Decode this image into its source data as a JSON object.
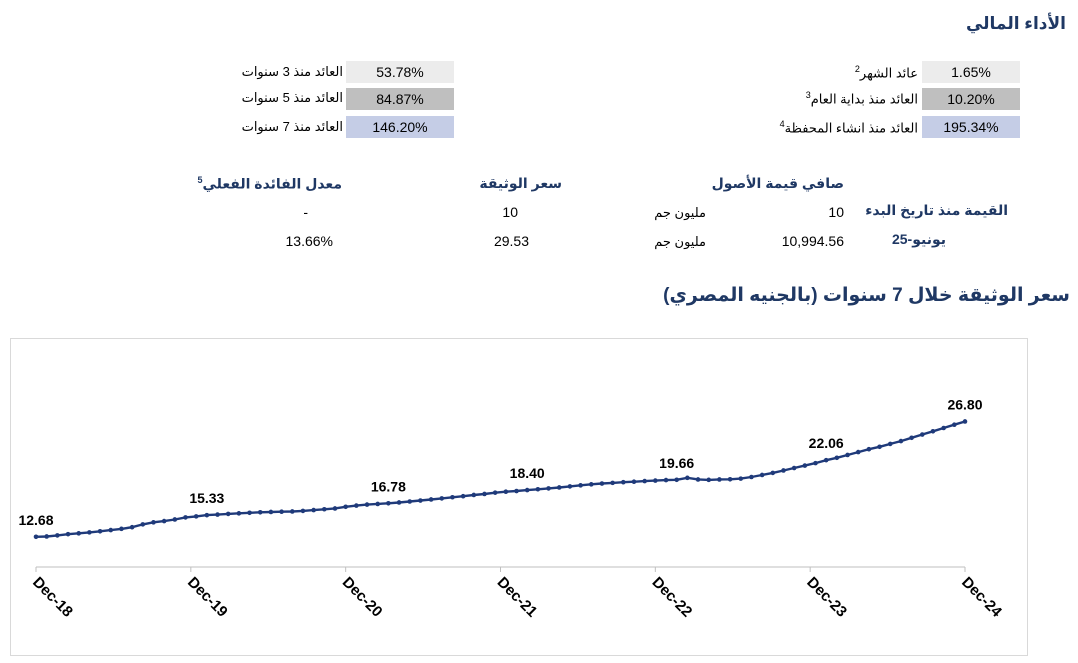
{
  "header": {
    "title": "الأداء المالي"
  },
  "performance": {
    "right": [
      {
        "label": "عائد الشهر",
        "sup": "2",
        "value": "1.65%",
        "tone": "light"
      },
      {
        "label": "العائد منذ بداية العام",
        "sup": "3",
        "value": "10.20%",
        "tone": "mid"
      },
      {
        "label": "العائد منذ انشاء المحفظة",
        "sup": "4",
        "value": "195.34%",
        "tone": "blue"
      }
    ],
    "left": [
      {
        "label": "العائد منذ 3 سنوات",
        "value": "53.78%",
        "tone": "light"
      },
      {
        "label": "العائد منذ 5 سنوات",
        "value": "84.87%",
        "tone": "mid"
      },
      {
        "label": "العائد منذ 7 سنوات",
        "value": "146.20%",
        "tone": "blue"
      }
    ]
  },
  "summary": {
    "headers": {
      "nav": "صافي قيمة الأصول",
      "price": "سعر الوثيقة",
      "rate": "معدل الفائدة الفعلي",
      "rate_sup": "5"
    },
    "row_label": "القيمة منذ تاريخ البدء",
    "row_date": "يونيو-25",
    "unit": "مليون جم",
    "rows": [
      {
        "nav": "10",
        "price": "10",
        "rate": "-"
      },
      {
        "nav": "10,994.56",
        "price": "29.53",
        "rate": "13.66%"
      }
    ]
  },
  "chart_title": "سعر الوثيقة خلال 7 سنوات (بالجنيه المصري)",
  "chart_data": {
    "type": "line",
    "title": "سعر الوثيقة خلال 7 سنوات (بالجنيه المصري)",
    "xlabel": "",
    "ylabel": "",
    "x_ticks": [
      "Dec-18",
      "Dec-19",
      "Dec-20",
      "Dec-21",
      "Dec-22",
      "Dec-23",
      "Dec-24"
    ],
    "ylim": [
      8,
      32
    ],
    "grid": false,
    "legend": "none",
    "color": "#1f3a7a",
    "series": [
      {
        "values": [
          12.68,
          12.72,
          12.85,
          13.0,
          13.1,
          13.22,
          13.35,
          13.5,
          13.65,
          13.85,
          14.2,
          14.45,
          14.6,
          14.8,
          15.05,
          15.18,
          15.33,
          15.4,
          15.48,
          15.55,
          15.62,
          15.68,
          15.72,
          15.75,
          15.78,
          15.85,
          15.95,
          16.05,
          16.15,
          16.35,
          16.5,
          16.62,
          16.7,
          16.78,
          16.88,
          17.0,
          17.12,
          17.25,
          17.38,
          17.52,
          17.65,
          17.8,
          17.92,
          18.08,
          18.2,
          18.28,
          18.4,
          18.5,
          18.6,
          18.72,
          18.85,
          18.98,
          19.1,
          19.2,
          19.28,
          19.36,
          19.42,
          19.5,
          19.56,
          19.62,
          19.66,
          19.9,
          19.7,
          19.65,
          19.7,
          19.72,
          19.8,
          20.0,
          20.25,
          20.5,
          20.8,
          21.1,
          21.4,
          21.7,
          22.06,
          22.35,
          22.7,
          23.05,
          23.4,
          23.7,
          24.05,
          24.4,
          24.8,
          25.2,
          25.6,
          26.0,
          26.4,
          26.8
        ],
        "labels": [
          {
            "index": 0,
            "text": "12.68"
          },
          {
            "index": 16,
            "text": "15.33"
          },
          {
            "index": 33,
            "text": "16.78"
          },
          {
            "index": 46,
            "text": "18.40"
          },
          {
            "index": 60,
            "text": "19.66"
          },
          {
            "index": 74,
            "text": "22.06"
          },
          {
            "index": 87,
            "text": "26.80"
          }
        ]
      }
    ]
  }
}
